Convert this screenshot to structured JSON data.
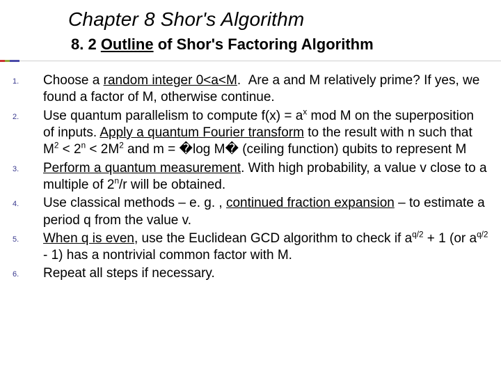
{
  "chapter_title": "Chapter 8  Shor's Algorithm",
  "subtitle_num": "8. 2 ",
  "subtitle_outline": "Outline",
  "subtitle_rest": " of Shor's Factoring Algorithm",
  "accent_colors": {
    "red": "#cc3333",
    "green": "#8fa83a",
    "blue": "#4a4aa8"
  },
  "bullet_color": "#3a3a8f",
  "body_fontsize": 19,
  "title_fontsize": 28,
  "subtitle_fontsize": 22,
  "background_color": "#ffffff",
  "steps": [
    {
      "html": "Choose a <span class=\"u\">random integer 0&lt;a&lt;M</span>.&nbsp;&nbsp;Are a and M relatively prime? If yes, we found a factor of M, otherwise continue."
    },
    {
      "html": "Use quantum parallelism to compute f(x) = a<sup>x</sup> mod M on the superposition of inputs. <span class=\"u\">Apply a quantum Fourier transform</span> to the result with n such that M<sup>2</sup> &lt; 2<sup>n</sup> &lt; 2M<sup>2</sup> and m = &#xFFFD;log M&#xFFFD; (ceiling function) qubits to represent M"
    },
    {
      "html": "<span class=\"u\">Perform a quantum measurement</span>. With high probability, a value v close to a multiple of 2<sup>n</sup>/r will be obtained."
    },
    {
      "html": "Use classical methods – e. g. , <span class=\"u\">continued fraction expansion</span> – to estimate a period q from the value v."
    },
    {
      "html": "<span class=\"u\">When q is even</span>, use the Euclidean GCD algorithm to check if a<sup>q/2</sup> + 1 (or a<sup>q/2</sup> - 1) has a nontrivial common factor with M."
    },
    {
      "html": "Repeat all steps if necessary."
    }
  ]
}
